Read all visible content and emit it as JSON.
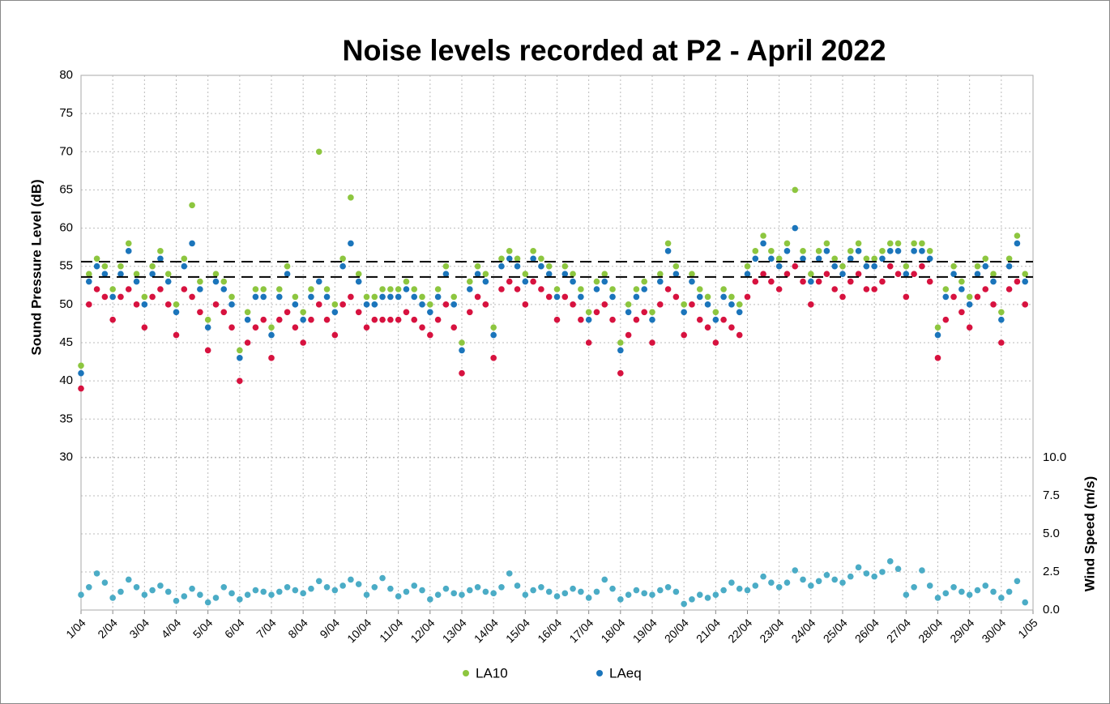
{
  "chart_data": {
    "type": "scatter",
    "title": "Noise levels recorded at P2 - April 2022",
    "y_label": "Sound Pressure Level (dB)",
    "y2_label": "Wind Speed (m/s)",
    "xlim": [
      0,
      30
    ],
    "xticks": [
      {
        "value": 0,
        "label": "1/04"
      },
      {
        "value": 1,
        "label": "2/04"
      },
      {
        "value": 2,
        "label": "3/04"
      },
      {
        "value": 3,
        "label": "4/04"
      },
      {
        "value": 4,
        "label": "5/04"
      },
      {
        "value": 5,
        "label": "6/04"
      },
      {
        "value": 6,
        "label": "7/04"
      },
      {
        "value": 7,
        "label": "8/04"
      },
      {
        "value": 8,
        "label": "9/04"
      },
      {
        "value": 9,
        "label": "10/04"
      },
      {
        "value": 10,
        "label": "11/04"
      },
      {
        "value": 11,
        "label": "12/04"
      },
      {
        "value": 12,
        "label": "13/04"
      },
      {
        "value": 13,
        "label": "14/04"
      },
      {
        "value": 14,
        "label": "15/04"
      },
      {
        "value": 15,
        "label": "16/04"
      },
      {
        "value": 16,
        "label": "17/04"
      },
      {
        "value": 17,
        "label": "18/04"
      },
      {
        "value": 18,
        "label": "19/04"
      },
      {
        "value": 19,
        "label": "20/04"
      },
      {
        "value": 20,
        "label": "21/04"
      },
      {
        "value": 21,
        "label": "22/04"
      },
      {
        "value": 22,
        "label": "23/04"
      },
      {
        "value": 23,
        "label": "24/04"
      },
      {
        "value": 24,
        "label": "25/04"
      },
      {
        "value": 25,
        "label": "26/04"
      },
      {
        "value": 26,
        "label": "27/04"
      },
      {
        "value": 27,
        "label": "28/04"
      },
      {
        "value": 28,
        "label": "29/04"
      },
      {
        "value": 29,
        "label": "30/04"
      },
      {
        "value": 30,
        "label": "1/05"
      }
    ],
    "ylim": [
      10,
      80
    ],
    "yticks": [
      30,
      35,
      40,
      45,
      50,
      55,
      60,
      65,
      70,
      75,
      80
    ],
    "y2lim": [
      0,
      35.1
    ],
    "y2ticks": [
      {
        "value": 0,
        "label": "0.0"
      },
      {
        "value": 2.5,
        "label": "2.5"
      },
      {
        "value": 5,
        "label": "5.0"
      },
      {
        "value": 7.5,
        "label": "7.5"
      },
      {
        "value": 10,
        "label": "10.0"
      }
    ],
    "grid": true,
    "legend": "bottom",
    "reference_lines": [
      55.6,
      53.6
    ],
    "x": [
      0,
      0.25,
      0.5,
      0.75,
      1,
      1.25,
      1.5,
      1.75,
      2,
      2.25,
      2.5,
      2.75,
      3,
      3.25,
      3.5,
      3.75,
      4,
      4.25,
      4.5,
      4.75,
      5,
      5.25,
      5.5,
      5.75,
      6,
      6.25,
      6.5,
      6.75,
      7,
      7.25,
      7.5,
      7.75,
      8,
      8.25,
      8.5,
      8.75,
      9,
      9.25,
      9.5,
      9.75,
      10,
      10.25,
      10.5,
      10.75,
      11,
      11.25,
      11.5,
      11.75,
      12,
      12.25,
      12.5,
      12.75,
      13,
      13.25,
      13.5,
      13.75,
      14,
      14.25,
      14.5,
      14.75,
      15,
      15.25,
      15.5,
      15.75,
      16,
      16.25,
      16.5,
      16.75,
      17,
      17.25,
      17.5,
      17.75,
      18,
      18.25,
      18.5,
      18.75,
      19,
      19.25,
      19.5,
      19.75,
      20,
      20.25,
      20.5,
      20.75,
      21,
      21.25,
      21.5,
      21.75,
      22,
      22.25,
      22.5,
      22.75,
      23,
      23.25,
      23.5,
      23.75,
      24,
      24.25,
      24.5,
      24.75,
      25,
      25.25,
      25.5,
      25.75,
      26,
      26.25,
      26.5,
      26.75,
      27,
      27.25,
      27.5,
      27.75,
      28,
      28.25,
      28.5,
      28.75,
      29,
      29.25,
      29.5,
      29.75
    ],
    "series": [
      {
        "name": "LA10",
        "color": "#8dc63f",
        "values": [
          42,
          54,
          56,
          55,
          52,
          55,
          58,
          54,
          51,
          55,
          57,
          54,
          50,
          56,
          63,
          53,
          48,
          54,
          53,
          51,
          44,
          49,
          52,
          52,
          47,
          52,
          55,
          51,
          49,
          52,
          70,
          52,
          50,
          56,
          64,
          54,
          51,
          51,
          52,
          52,
          52,
          53,
          52,
          51,
          50,
          52,
          55,
          51,
          45,
          53,
          55,
          54,
          47,
          56,
          57,
          56,
          54,
          57,
          56,
          55,
          52,
          55,
          54,
          52,
          49,
          53,
          54,
          52,
          45,
          50,
          52,
          53,
          49,
          54,
          58,
          55,
          50,
          54,
          52,
          51,
          49,
          52,
          51,
          50,
          55,
          57,
          59,
          57,
          56,
          58,
          65,
          57,
          54,
          57,
          58,
          56,
          55,
          57,
          58,
          56,
          56,
          57,
          58,
          58,
          55,
          58,
          58,
          57,
          47,
          52,
          55,
          53,
          51,
          55,
          56,
          54,
          49,
          56,
          59,
          54
        ]
      },
      {
        "name": "LAeq",
        "color": "#1b75bb",
        "values": [
          41,
          53,
          55,
          54,
          51,
          54,
          57,
          53,
          50,
          54,
          56,
          53,
          49,
          55,
          58,
          52,
          47,
          53,
          52,
          50,
          43,
          48,
          51,
          51,
          46,
          51,
          54,
          50,
          48,
          51,
          53,
          51,
          49,
          55,
          58,
          53,
          50,
          50,
          51,
          51,
          51,
          52,
          51,
          50,
          49,
          51,
          54,
          50,
          44,
          52,
          54,
          53,
          46,
          55,
          56,
          55,
          53,
          56,
          55,
          54,
          51,
          54,
          53,
          51,
          48,
          52,
          53,
          51,
          44,
          49,
          51,
          52,
          48,
          53,
          57,
          54,
          49,
          53,
          51,
          50,
          48,
          51,
          50,
          49,
          54,
          56,
          58,
          56,
          55,
          57,
          60,
          56,
          53,
          56,
          57,
          55,
          54,
          56,
          57,
          55,
          55,
          56,
          57,
          57,
          54,
          57,
          57,
          56,
          46,
          51,
          54,
          52,
          50,
          54,
          55,
          53,
          48,
          55,
          58,
          53
        ]
      },
      {
        "color": "#d7123f",
        "values": [
          39,
          50,
          52,
          51,
          48,
          51,
          52,
          50,
          47,
          51,
          52,
          50,
          46,
          52,
          51,
          49,
          44,
          50,
          49,
          47,
          40,
          45,
          47,
          48,
          43,
          48,
          49,
          47,
          45,
          48,
          50,
          48,
          46,
          50,
          51,
          49,
          47,
          48,
          48,
          48,
          48,
          49,
          48,
          47,
          46,
          48,
          50,
          47,
          41,
          49,
          51,
          50,
          43,
          52,
          53,
          52,
          50,
          53,
          52,
          51,
          48,
          51,
          50,
          48,
          45,
          49,
          50,
          48,
          41,
          46,
          48,
          49,
          45,
          50,
          52,
          51,
          46,
          50,
          48,
          47,
          45,
          48,
          47,
          46,
          51,
          53,
          54,
          53,
          52,
          54,
          55,
          53,
          50,
          53,
          54,
          52,
          51,
          53,
          54,
          52,
          52,
          53,
          55,
          54,
          51,
          54,
          55,
          53,
          43,
          48,
          51,
          49,
          47,
          51,
          52,
          50,
          45,
          52,
          53,
          50
        ]
      },
      {
        "color": "#4bacc6",
        "axis": "y2",
        "values": [
          1.0,
          1.5,
          2.4,
          1.8,
          0.8,
          1.2,
          2.0,
          1.5,
          1.0,
          1.3,
          1.6,
          1.2,
          0.6,
          0.9,
          1.4,
          1.0,
          0.5,
          0.8,
          1.5,
          1.1,
          0.7,
          1.0,
          1.3,
          1.2,
          1.0,
          1.2,
          1.5,
          1.3,
          1.1,
          1.4,
          1.9,
          1.5,
          1.3,
          1.6,
          2.0,
          1.7,
          1.0,
          1.5,
          2.1,
          1.4,
          0.9,
          1.2,
          1.6,
          1.3,
          0.7,
          1.0,
          1.4,
          1.1,
          1.0,
          1.3,
          1.5,
          1.2,
          1.1,
          1.5,
          2.4,
          1.6,
          1.0,
          1.3,
          1.5,
          1.2,
          0.9,
          1.1,
          1.4,
          1.2,
          0.8,
          1.2,
          2.0,
          1.4,
          0.7,
          1.0,
          1.3,
          1.1,
          1.0,
          1.3,
          1.5,
          1.2,
          0.4,
          0.7,
          1.0,
          0.8,
          1.0,
          1.3,
          1.8,
          1.4,
          1.3,
          1.6,
          2.2,
          1.8,
          1.5,
          1.8,
          2.6,
          2.0,
          1.6,
          1.9,
          2.3,
          2.0,
          1.8,
          2.2,
          2.8,
          2.4,
          2.2,
          2.5,
          3.2,
          2.7,
          1.0,
          1.5,
          2.6,
          1.6,
          0.8,
          1.1,
          1.5,
          1.2,
          1.0,
          1.3,
          1.6,
          1.2,
          0.8,
          1.2,
          1.9,
          0.5
        ]
      }
    ]
  }
}
